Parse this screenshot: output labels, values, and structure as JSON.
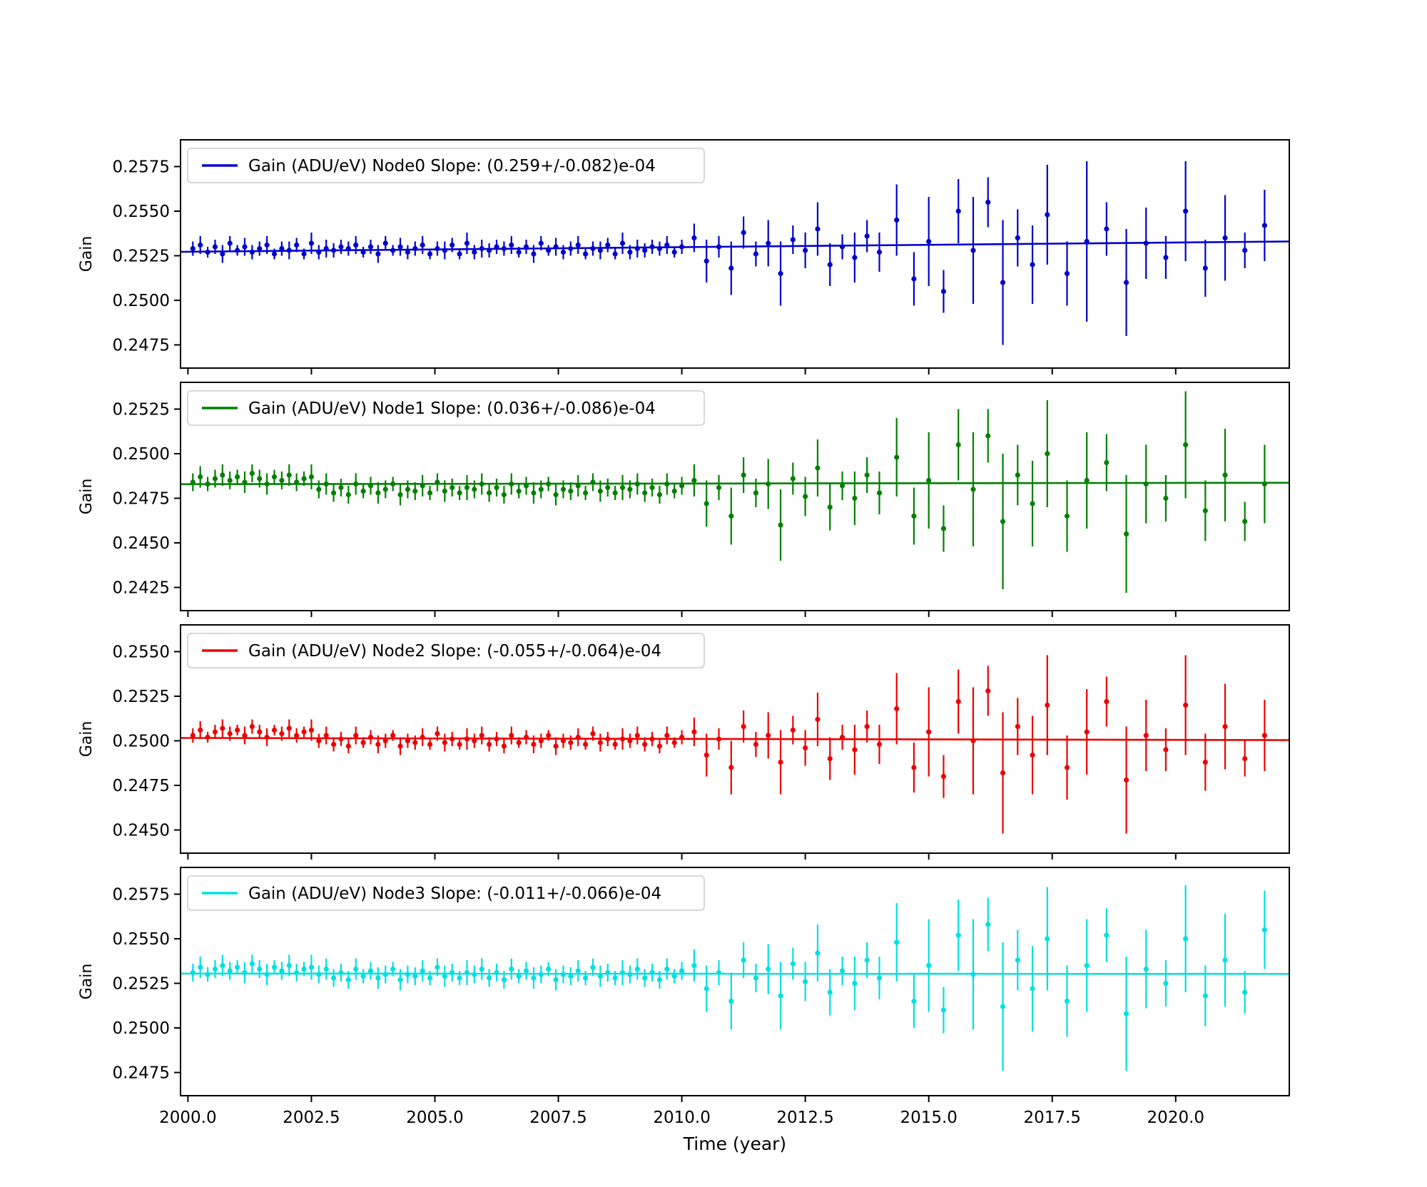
{
  "figure": {
    "xlabel": "Time (year)",
    "background": "#ffffff",
    "xlim": [
      1999.85,
      2022.3
    ],
    "xticks": [
      2000.0,
      2002.5,
      2005.0,
      2007.5,
      2010.0,
      2012.5,
      2015.0,
      2017.5,
      2020.0
    ],
    "frame_color": "#000000"
  },
  "shared_x": [
    2000.1,
    2000.25,
    2000.4,
    2000.55,
    2000.7,
    2000.85,
    2001.0,
    2001.15,
    2001.3,
    2001.45,
    2001.6,
    2001.75,
    2001.9,
    2002.05,
    2002.2,
    2002.35,
    2002.5,
    2002.65,
    2002.8,
    2002.95,
    2003.1,
    2003.25,
    2003.4,
    2003.55,
    2003.7,
    2003.85,
    2004.0,
    2004.15,
    2004.3,
    2004.45,
    2004.6,
    2004.75,
    2004.9,
    2005.05,
    2005.2,
    2005.35,
    2005.5,
    2005.65,
    2005.8,
    2005.95,
    2006.1,
    2006.25,
    2006.4,
    2006.55,
    2006.7,
    2006.85,
    2007.0,
    2007.15,
    2007.3,
    2007.45,
    2007.6,
    2007.75,
    2007.9,
    2008.05,
    2008.2,
    2008.35,
    2008.5,
    2008.65,
    2008.8,
    2008.95,
    2009.1,
    2009.25,
    2009.4,
    2009.55,
    2009.7,
    2009.85,
    2010.0,
    2010.25,
    2010.5,
    2010.75,
    2011.0,
    2011.25,
    2011.5,
    2011.75,
    2012.0,
    2012.25,
    2012.5,
    2012.75,
    2013.0,
    2013.25,
    2013.5,
    2013.75,
    2014.0,
    2014.35,
    2014.7,
    2015.0,
    2015.3,
    2015.6,
    2015.9,
    2016.2,
    2016.5,
    2016.8,
    2017.1,
    2017.4,
    2017.8,
    2018.2,
    2018.6,
    2019.0,
    2019.4,
    2019.8,
    2020.2,
    2020.6,
    2021.0,
    2021.4,
    2021.8
  ],
  "chart_data": [
    {
      "type": "scatter",
      "node": "Node0",
      "legend_label": "Gain (ADU/eV) Node0 Slope: (0.259+/-0.082)e-04",
      "color": "#0000cd",
      "ylabel": "Gain",
      "ylim": [
        0.2462,
        0.259
      ],
      "yticks": [
        0.2475,
        0.25,
        0.2525,
        0.255,
        0.2575
      ],
      "fit_line": {
        "x": [
          1999.85,
          2022.3
        ],
        "y": [
          0.25272,
          0.2533
        ]
      },
      "x_ref": "shared_x",
      "y": [
        0.2529,
        0.2531,
        0.2527,
        0.253,
        0.2526,
        0.2532,
        0.2528,
        0.253,
        0.2527,
        0.2529,
        0.2531,
        0.2526,
        0.2529,
        0.2528,
        0.2531,
        0.2526,
        0.2532,
        0.2527,
        0.2529,
        0.2528,
        0.253,
        0.2529,
        0.2531,
        0.2527,
        0.253,
        0.2526,
        0.2532,
        0.2528,
        0.253,
        0.2527,
        0.2529,
        0.2531,
        0.2526,
        0.2529,
        0.2528,
        0.2531,
        0.2526,
        0.2532,
        0.2527,
        0.2529,
        0.2528,
        0.253,
        0.2529,
        0.2531,
        0.2527,
        0.253,
        0.2526,
        0.2532,
        0.2528,
        0.253,
        0.2527,
        0.2529,
        0.2531,
        0.2526,
        0.2529,
        0.2528,
        0.2531,
        0.2526,
        0.2532,
        0.2527,
        0.2529,
        0.2528,
        0.253,
        0.2529,
        0.2531,
        0.2527,
        0.253,
        0.2535,
        0.2522,
        0.253,
        0.2518,
        0.2538,
        0.2526,
        0.2532,
        0.2515,
        0.2534,
        0.2528,
        0.254,
        0.252,
        0.253,
        0.2524,
        0.2536,
        0.2527,
        0.2545,
        0.2512,
        0.2533,
        0.2505,
        0.255,
        0.2528,
        0.2555,
        0.251,
        0.2535,
        0.252,
        0.2548,
        0.2515,
        0.2533,
        0.254,
        0.251,
        0.2532,
        0.2524,
        0.255,
        0.2518,
        0.2535,
        0.2528,
        0.2542
      ],
      "yerr": [
        0.0004,
        0.0005,
        0.0003,
        0.0004,
        0.0005,
        0.0004,
        0.0003,
        0.0005,
        0.0004,
        0.0004,
        0.0005,
        0.0003,
        0.0004,
        0.0005,
        0.0004,
        0.0003,
        0.0006,
        0.0004,
        0.0005,
        0.0004,
        0.0004,
        0.0004,
        0.0005,
        0.0003,
        0.0004,
        0.0005,
        0.0004,
        0.0003,
        0.0005,
        0.0004,
        0.0004,
        0.0005,
        0.0003,
        0.0004,
        0.0005,
        0.0004,
        0.0003,
        0.0006,
        0.0004,
        0.0005,
        0.0004,
        0.0004,
        0.0004,
        0.0005,
        0.0003,
        0.0004,
        0.0005,
        0.0004,
        0.0003,
        0.0005,
        0.0004,
        0.0004,
        0.0005,
        0.0003,
        0.0004,
        0.0005,
        0.0004,
        0.0003,
        0.0006,
        0.0004,
        0.0005,
        0.0004,
        0.0004,
        0.0004,
        0.0005,
        0.0003,
        0.0004,
        0.0008,
        0.0012,
        0.0006,
        0.0015,
        0.0009,
        0.0007,
        0.0013,
        0.0018,
        0.0008,
        0.001,
        0.0015,
        0.0012,
        0.0007,
        0.0014,
        0.0009,
        0.0011,
        0.002,
        0.0015,
        0.0025,
        0.0012,
        0.0018,
        0.003,
        0.0014,
        0.0035,
        0.0016,
        0.0022,
        0.0028,
        0.0018,
        0.0045,
        0.0015,
        0.003,
        0.002,
        0.0012,
        0.0028,
        0.0016,
        0.0024,
        0.001,
        0.002
      ]
    },
    {
      "type": "scatter",
      "node": "Node1",
      "legend_label": "Gain (ADU/eV) Node1 Slope: (0.036+/-0.086)e-04",
      "color": "#008000",
      "ylabel": "Gain",
      "ylim": [
        0.2412,
        0.254
      ],
      "yticks": [
        0.2425,
        0.245,
        0.2475,
        0.25,
        0.2525
      ],
      "fit_line": {
        "x": [
          1999.85,
          2022.3
        ],
        "y": [
          0.24829,
          0.24837
        ]
      },
      "x_ref": "shared_x",
      "y": [
        0.2484,
        0.2487,
        0.2483,
        0.2486,
        0.2488,
        0.2485,
        0.2487,
        0.2484,
        0.2489,
        0.2486,
        0.2483,
        0.2487,
        0.2485,
        0.2488,
        0.2484,
        0.2486,
        0.2487,
        0.248,
        0.2483,
        0.2478,
        0.2481,
        0.2477,
        0.2483,
        0.2479,
        0.2482,
        0.2478,
        0.248,
        0.2483,
        0.2477,
        0.248,
        0.2479,
        0.2482,
        0.2478,
        0.2484,
        0.2479,
        0.2481,
        0.2478,
        0.2481,
        0.248,
        0.2483,
        0.2478,
        0.2481,
        0.2477,
        0.2483,
        0.2479,
        0.2482,
        0.2478,
        0.248,
        0.2483,
        0.2477,
        0.248,
        0.2479,
        0.2482,
        0.2478,
        0.2484,
        0.2479,
        0.2481,
        0.2478,
        0.2481,
        0.248,
        0.2483,
        0.2478,
        0.2481,
        0.2477,
        0.2483,
        0.2479,
        0.2482,
        0.2485,
        0.2472,
        0.2481,
        0.2465,
        0.2488,
        0.2478,
        0.2483,
        0.246,
        0.2486,
        0.2476,
        0.2492,
        0.247,
        0.2482,
        0.2475,
        0.2488,
        0.2478,
        0.2498,
        0.2465,
        0.2485,
        0.2458,
        0.2505,
        0.248,
        0.251,
        0.2462,
        0.2488,
        0.2472,
        0.25,
        0.2465,
        0.2485,
        0.2495,
        0.2455,
        0.2483,
        0.2475,
        0.2505,
        0.2468,
        0.2488,
        0.2462,
        0.2483
      ],
      "yerr": [
        0.0005,
        0.0006,
        0.0004,
        0.0005,
        0.0006,
        0.0005,
        0.0004,
        0.0006,
        0.0005,
        0.0005,
        0.0006,
        0.0004,
        0.0005,
        0.0006,
        0.0005,
        0.0004,
        0.0007,
        0.0005,
        0.0006,
        0.0005,
        0.0005,
        0.0005,
        0.0006,
        0.0004,
        0.0005,
        0.0006,
        0.0005,
        0.0004,
        0.0006,
        0.0005,
        0.0005,
        0.0006,
        0.0004,
        0.0005,
        0.0006,
        0.0005,
        0.0004,
        0.0007,
        0.0005,
        0.0006,
        0.0005,
        0.0005,
        0.0005,
        0.0006,
        0.0004,
        0.0005,
        0.0006,
        0.0005,
        0.0004,
        0.0006,
        0.0005,
        0.0005,
        0.0006,
        0.0004,
        0.0005,
        0.0006,
        0.0005,
        0.0004,
        0.0007,
        0.0005,
        0.0006,
        0.0005,
        0.0005,
        0.0005,
        0.0006,
        0.0004,
        0.0005,
        0.0009,
        0.0013,
        0.0007,
        0.0016,
        0.001,
        0.0008,
        0.0014,
        0.002,
        0.0009,
        0.0011,
        0.0016,
        0.0013,
        0.0008,
        0.0015,
        0.001,
        0.0012,
        0.0022,
        0.0016,
        0.0027,
        0.0013,
        0.002,
        0.0032,
        0.0015,
        0.0038,
        0.0017,
        0.0024,
        0.003,
        0.002,
        0.0027,
        0.0016,
        0.0033,
        0.0022,
        0.0013,
        0.003,
        0.0017,
        0.0026,
        0.0011,
        0.0022
      ]
    },
    {
      "type": "scatter",
      "node": "Node2",
      "legend_label": "Gain (ADU/eV) Node2 Slope: (-0.055+/-0.064)e-04",
      "color": "#ee0000",
      "ylabel": "Gain",
      "ylim": [
        0.2437,
        0.2565
      ],
      "yticks": [
        0.245,
        0.2475,
        0.25,
        0.2525,
        0.255
      ],
      "fit_line": {
        "x": [
          1999.85,
          2022.3
        ],
        "y": [
          0.25016,
          0.25004
        ]
      },
      "x_ref": "shared_x",
      "y": [
        0.2503,
        0.2506,
        0.2502,
        0.2505,
        0.2507,
        0.2504,
        0.2506,
        0.2503,
        0.2508,
        0.2505,
        0.2502,
        0.2506,
        0.2504,
        0.2507,
        0.2503,
        0.2505,
        0.2506,
        0.25,
        0.2503,
        0.2498,
        0.2501,
        0.2497,
        0.2503,
        0.2499,
        0.2502,
        0.2498,
        0.25,
        0.2503,
        0.2497,
        0.25,
        0.2499,
        0.2502,
        0.2498,
        0.2504,
        0.2499,
        0.2501,
        0.2498,
        0.2501,
        0.25,
        0.2503,
        0.2498,
        0.2501,
        0.2497,
        0.2503,
        0.2499,
        0.2502,
        0.2498,
        0.25,
        0.2503,
        0.2497,
        0.25,
        0.2499,
        0.2502,
        0.2498,
        0.2504,
        0.2499,
        0.2501,
        0.2498,
        0.2501,
        0.25,
        0.2503,
        0.2498,
        0.2501,
        0.2497,
        0.2503,
        0.2499,
        0.2502,
        0.2505,
        0.2492,
        0.2501,
        0.2485,
        0.2508,
        0.2498,
        0.2503,
        0.2488,
        0.2506,
        0.2496,
        0.2512,
        0.249,
        0.2502,
        0.2495,
        0.2508,
        0.2498,
        0.2518,
        0.2485,
        0.2505,
        0.248,
        0.2522,
        0.25,
        0.2528,
        0.2482,
        0.2508,
        0.2492,
        0.252,
        0.2485,
        0.2505,
        0.2522,
        0.2478,
        0.2503,
        0.2495,
        0.252,
        0.2488,
        0.2508,
        0.249,
        0.2503
      ],
      "yerr": [
        0.0004,
        0.0005,
        0.0003,
        0.0004,
        0.0005,
        0.0004,
        0.0003,
        0.0005,
        0.0004,
        0.0004,
        0.0005,
        0.0003,
        0.0004,
        0.0005,
        0.0004,
        0.0003,
        0.0006,
        0.0004,
        0.0005,
        0.0004,
        0.0004,
        0.0004,
        0.0005,
        0.0003,
        0.0004,
        0.0005,
        0.0004,
        0.0003,
        0.0005,
        0.0004,
        0.0004,
        0.0005,
        0.0003,
        0.0004,
        0.0005,
        0.0004,
        0.0003,
        0.0006,
        0.0004,
        0.0005,
        0.0004,
        0.0004,
        0.0004,
        0.0005,
        0.0003,
        0.0004,
        0.0005,
        0.0004,
        0.0003,
        0.0005,
        0.0004,
        0.0004,
        0.0005,
        0.0003,
        0.0004,
        0.0005,
        0.0004,
        0.0003,
        0.0006,
        0.0004,
        0.0005,
        0.0004,
        0.0004,
        0.0004,
        0.0005,
        0.0003,
        0.0004,
        0.0008,
        0.0012,
        0.0006,
        0.0015,
        0.0009,
        0.0007,
        0.0013,
        0.0018,
        0.0008,
        0.001,
        0.0015,
        0.0012,
        0.0007,
        0.0014,
        0.0009,
        0.0011,
        0.002,
        0.0014,
        0.0025,
        0.0012,
        0.0018,
        0.003,
        0.0014,
        0.0034,
        0.0016,
        0.0022,
        0.0028,
        0.0018,
        0.0024,
        0.0014,
        0.003,
        0.002,
        0.0012,
        0.0028,
        0.0016,
        0.0024,
        0.001,
        0.002
      ]
    },
    {
      "type": "scatter",
      "node": "Node3",
      "legend_label": "Gain (ADU/eV) Node3 Slope: (-0.011+/-0.066)e-04",
      "color": "#00e0e0",
      "ylabel": "Gain",
      "ylim": [
        0.2462,
        0.259
      ],
      "yticks": [
        0.2475,
        0.25,
        0.2525,
        0.255,
        0.2575
      ],
      "fit_line": {
        "x": [
          1999.85,
          2022.3
        ],
        "y": [
          0.25305,
          0.25303
        ]
      },
      "x_ref": "shared_x",
      "y": [
        0.2531,
        0.2534,
        0.253,
        0.2533,
        0.2535,
        0.2532,
        0.2534,
        0.2531,
        0.2536,
        0.2533,
        0.253,
        0.2534,
        0.2532,
        0.2535,
        0.2531,
        0.2533,
        0.2534,
        0.253,
        0.2533,
        0.2528,
        0.2531,
        0.2527,
        0.2533,
        0.2529,
        0.2532,
        0.2528,
        0.253,
        0.2533,
        0.2527,
        0.253,
        0.2529,
        0.2532,
        0.2528,
        0.2534,
        0.2529,
        0.2531,
        0.2528,
        0.2531,
        0.253,
        0.2533,
        0.2528,
        0.2531,
        0.2527,
        0.2533,
        0.2529,
        0.2532,
        0.2528,
        0.253,
        0.2533,
        0.2527,
        0.253,
        0.2529,
        0.2532,
        0.2528,
        0.2534,
        0.2529,
        0.2531,
        0.2528,
        0.2531,
        0.253,
        0.2533,
        0.2528,
        0.2531,
        0.2527,
        0.2533,
        0.2529,
        0.2532,
        0.2535,
        0.2522,
        0.2531,
        0.2515,
        0.2538,
        0.2528,
        0.2533,
        0.2518,
        0.2536,
        0.2526,
        0.2542,
        0.252,
        0.2532,
        0.2525,
        0.2538,
        0.2528,
        0.2548,
        0.2515,
        0.2535,
        0.251,
        0.2552,
        0.253,
        0.2558,
        0.2512,
        0.2538,
        0.2522,
        0.255,
        0.2515,
        0.2535,
        0.2552,
        0.2508,
        0.2533,
        0.2525,
        0.255,
        0.2518,
        0.2538,
        0.252,
        0.2555
      ],
      "yerr": [
        0.0005,
        0.0006,
        0.0004,
        0.0005,
        0.0006,
        0.0005,
        0.0004,
        0.0006,
        0.0005,
        0.0005,
        0.0006,
        0.0004,
        0.0005,
        0.0006,
        0.0005,
        0.0004,
        0.0007,
        0.0005,
        0.0006,
        0.0005,
        0.0005,
        0.0005,
        0.0006,
        0.0004,
        0.0005,
        0.0006,
        0.0005,
        0.0004,
        0.0006,
        0.0005,
        0.0005,
        0.0006,
        0.0004,
        0.0005,
        0.0006,
        0.0005,
        0.0004,
        0.0007,
        0.0005,
        0.0006,
        0.0005,
        0.0005,
        0.0005,
        0.0006,
        0.0004,
        0.0005,
        0.0006,
        0.0005,
        0.0004,
        0.0006,
        0.0005,
        0.0005,
        0.0006,
        0.0004,
        0.0005,
        0.0006,
        0.0005,
        0.0004,
        0.0007,
        0.0005,
        0.0006,
        0.0005,
        0.0005,
        0.0005,
        0.0006,
        0.0004,
        0.0005,
        0.0009,
        0.0013,
        0.0007,
        0.0016,
        0.001,
        0.0008,
        0.0014,
        0.0019,
        0.0009,
        0.0011,
        0.0016,
        0.0013,
        0.0008,
        0.0015,
        0.001,
        0.0012,
        0.0022,
        0.0015,
        0.0026,
        0.0013,
        0.002,
        0.0031,
        0.0015,
        0.0036,
        0.0017,
        0.0024,
        0.0029,
        0.002,
        0.0026,
        0.0015,
        0.0032,
        0.0022,
        0.0013,
        0.003,
        0.0017,
        0.0026,
        0.0012,
        0.0022
      ]
    }
  ]
}
